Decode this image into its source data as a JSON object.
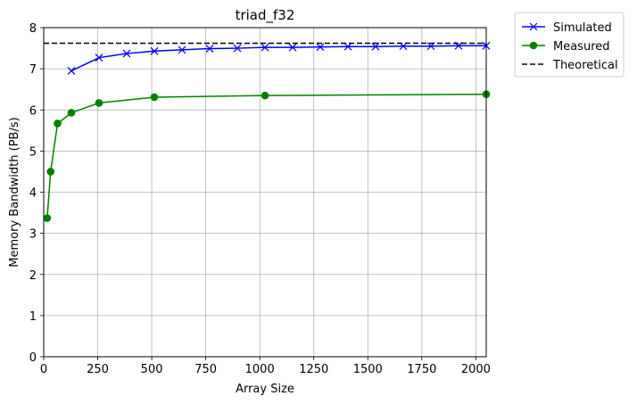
{
  "chart_data": {
    "type": "line",
    "title": "triad_f32",
    "xlabel": "Array Size",
    "ylabel": "Memory Bandwidth (PB/s)",
    "xlim": [
      0,
      2048
    ],
    "ylim": [
      0,
      8
    ],
    "xticks": [
      0,
      250,
      500,
      750,
      1000,
      1250,
      1500,
      1750,
      2000
    ],
    "yticks": [
      0,
      1,
      2,
      3,
      4,
      5,
      6,
      7,
      8
    ],
    "grid": true,
    "legend_position": "outside upper right",
    "series": [
      {
        "name": "Simulated",
        "color": "#0000ff",
        "marker": "x",
        "linestyle": "solid",
        "x": [
          128,
          256,
          384,
          512,
          640,
          768,
          896,
          1024,
          1152,
          1280,
          1408,
          1536,
          1664,
          1792,
          1920,
          2048
        ],
        "y": [
          6.95,
          7.27,
          7.37,
          7.43,
          7.46,
          7.49,
          7.5,
          7.52,
          7.52,
          7.53,
          7.54,
          7.54,
          7.55,
          7.55,
          7.56,
          7.56
        ]
      },
      {
        "name": "Measured",
        "color": "#008000",
        "marker": "o",
        "linestyle": "solid",
        "x": [
          16,
          32,
          64,
          128,
          256,
          512,
          1024,
          2048
        ],
        "y": [
          3.37,
          4.5,
          5.67,
          5.93,
          6.17,
          6.31,
          6.35,
          6.38
        ]
      },
      {
        "name": "Theoretical",
        "color": "#000000",
        "marker": "none",
        "linestyle": "dashed",
        "x": [
          0,
          2048
        ],
        "y": [
          7.62,
          7.62
        ]
      }
    ]
  }
}
